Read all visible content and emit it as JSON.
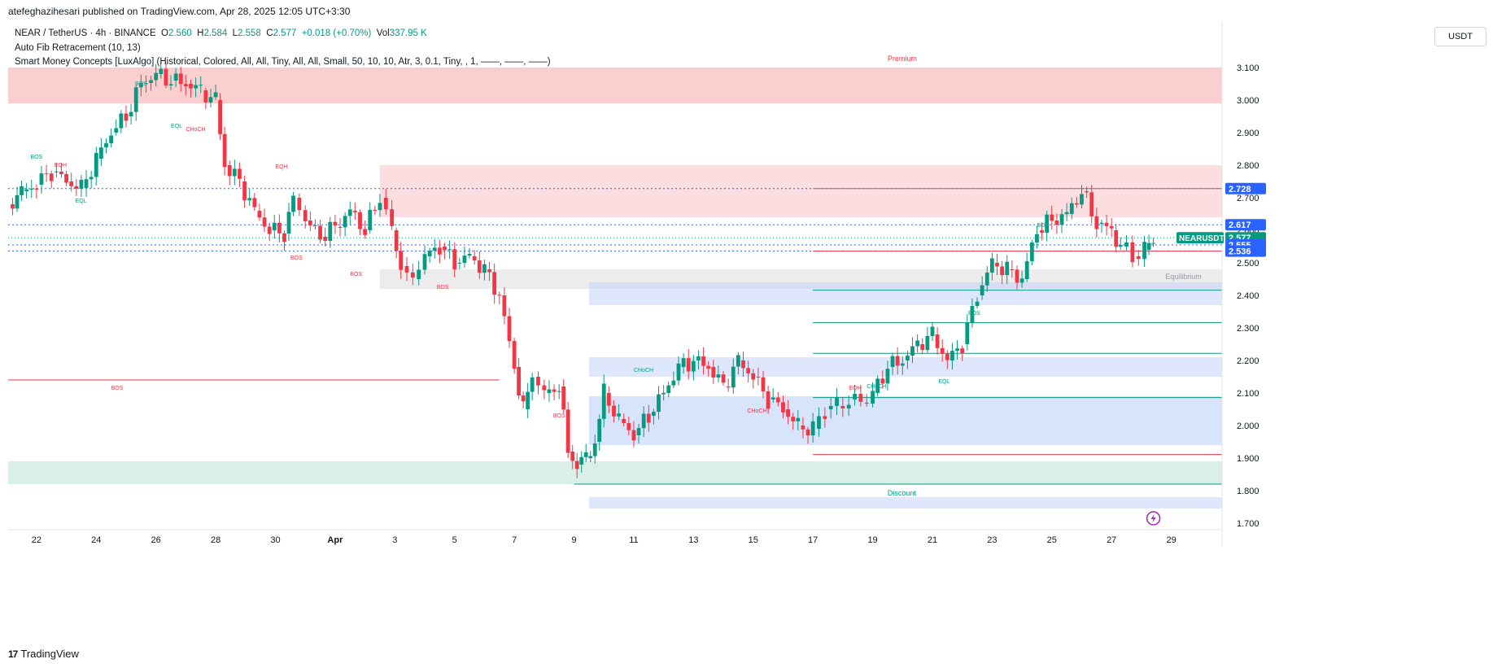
{
  "header": {
    "published": "atefeghazihesari published on TradingView.com, Apr 28, 2025 12:05 UTC+3:30"
  },
  "legend": {
    "symbol": "NEAR / TetherUS · 4h · BINANCE",
    "o_label": "O",
    "o_value": "2.560",
    "h_label": "H",
    "h_value": "2.584",
    "l_label": "L",
    "l_value": "2.558",
    "c_label": "C",
    "c_value": "2.577",
    "change": "+0.018 (+0.70%)",
    "vol_label": "Vol",
    "vol_value": "337.95 K",
    "indicator_1": "Auto Fib Retracement (10, 13)",
    "indicator_2": "Smart Money Concepts [LuxAlgo] (Historical, Colored, All, All, Tiny, All, All, Small, 50, 10, 10, Atr, 3, 0.1, Tiny, , 1, ——, ——, ——)"
  },
  "currency_button": "USDT",
  "footer": {
    "brand": "TradingView",
    "logo": "17"
  },
  "colors": {
    "up": "#089981",
    "down": "#f23645",
    "accent": "#2962ff"
  },
  "chart_data": {
    "type": "candlestick",
    "symbol": "NEARUSDT",
    "ylim": [
      1.69,
      3.24
    ],
    "y_ticks": [
      "3.100",
      "3.000",
      "2.900",
      "2.800",
      "2.700",
      "2.600",
      "2.500",
      "2.400",
      "2.300",
      "2.200",
      "2.100",
      "2.000",
      "1.900",
      "1.800",
      "1.700"
    ],
    "x_ticks": [
      "22",
      "24",
      "26",
      "28",
      "30",
      "Apr",
      "3",
      "5",
      "7",
      "9",
      "11",
      "13",
      "15",
      "17",
      "19",
      "21",
      "23",
      "25",
      "27",
      "29"
    ],
    "x_tick_pos": [
      22,
      24,
      26,
      28,
      30,
      32,
      34,
      36,
      38,
      40,
      42,
      44,
      46,
      48,
      50,
      52,
      54,
      56,
      58,
      60
    ],
    "xlim": [
      21.05,
      61.7
    ],
    "close_series": [
      [
        21.05,
        2.68
      ],
      [
        21.5,
        2.72
      ],
      [
        22,
        2.74
      ],
      [
        22.5,
        2.78
      ],
      [
        23,
        2.75
      ],
      [
        23.5,
        2.73
      ],
      [
        24,
        2.82
      ],
      [
        24.5,
        2.9
      ],
      [
        25,
        2.95
      ],
      [
        25.5,
        3.05
      ],
      [
        26,
        3.08
      ],
      [
        26.5,
        3.06
      ],
      [
        27,
        3.05
      ],
      [
        27.5,
        3.03
      ],
      [
        28,
        3.0
      ],
      [
        28.3,
        2.8
      ],
      [
        28.8,
        2.75
      ],
      [
        29.3,
        2.66
      ],
      [
        29.8,
        2.6
      ],
      [
        30.3,
        2.59
      ],
      [
        30.6,
        2.7
      ],
      [
        31,
        2.63
      ],
      [
        31.5,
        2.58
      ],
      [
        32,
        2.61
      ],
      [
        32.5,
        2.66
      ],
      [
        33,
        2.6
      ],
      [
        33.5,
        2.7
      ],
      [
        33.9,
        2.6
      ],
      [
        34.2,
        2.49
      ],
      [
        34.6,
        2.45
      ],
      [
        35,
        2.52
      ],
      [
        35.5,
        2.55
      ],
      [
        36,
        2.5
      ],
      [
        36.5,
        2.52
      ],
      [
        37,
        2.48
      ],
      [
        37.5,
        2.4
      ],
      [
        38,
        2.18
      ],
      [
        38.3,
        2.05
      ],
      [
        38.6,
        2.15
      ],
      [
        39,
        2.1
      ],
      [
        39.5,
        2.12
      ],
      [
        39.8,
        1.92
      ],
      [
        40.1,
        1.88
      ],
      [
        40.4,
        1.9
      ],
      [
        40.7,
        1.95
      ],
      [
        41,
        2.1
      ],
      [
        41.5,
        2.02
      ],
      [
        42,
        1.97
      ],
      [
        42.5,
        2.03
      ],
      [
        43,
        2.1
      ],
      [
        43.5,
        2.18
      ],
      [
        44,
        2.2
      ],
      [
        44.5,
        2.18
      ],
      [
        45,
        2.12
      ],
      [
        45.5,
        2.2
      ],
      [
        46,
        2.15
      ],
      [
        46.5,
        2.08
      ],
      [
        47,
        2.05
      ],
      [
        47.5,
        2.0
      ],
      [
        48,
        1.99
      ],
      [
        48.4,
        2.05
      ],
      [
        48.8,
        2.06
      ],
      [
        49.2,
        2.08
      ],
      [
        49.6,
        2.07
      ],
      [
        50,
        2.1
      ],
      [
        50.5,
        2.18
      ],
      [
        51,
        2.2
      ],
      [
        51.5,
        2.25
      ],
      [
        52,
        2.28
      ],
      [
        52.5,
        2.2
      ],
      [
        53,
        2.25
      ],
      [
        53.5,
        2.4
      ],
      [
        54,
        2.5
      ],
      [
        54.5,
        2.48
      ],
      [
        55,
        2.45
      ],
      [
        55.5,
        2.6
      ],
      [
        56,
        2.63
      ],
      [
        56.5,
        2.65
      ],
      [
        57,
        2.72
      ],
      [
        57.5,
        2.62
      ],
      [
        58,
        2.6
      ],
      [
        58.3,
        2.55
      ],
      [
        58.7,
        2.52
      ],
      [
        59.1,
        2.54
      ],
      [
        59.4,
        2.58
      ]
    ],
    "price_labels": [
      {
        "value": "2.728",
        "color": "#2962ff"
      },
      {
        "value": "2.617",
        "color": "#2962ff"
      },
      {
        "value": "2.577",
        "color": "#089981",
        "tag": "NEARUSDT",
        "countdown": "03:24:40"
      },
      {
        "value": "2.555",
        "color": "#2962ff"
      },
      {
        "value": "2.536",
        "color": "#2962ff"
      }
    ],
    "zones": [
      {
        "label": "Premium",
        "y0": 2.99,
        "y1": 3.1,
        "color": "#f7a8a8"
      },
      {
        "label": "",
        "y0": 2.64,
        "y1": 2.8,
        "color": "#f9c3c6"
      },
      {
        "label": "Equilibrium",
        "y0": 2.42,
        "y1": 2.48,
        "color": "#dcdcdc"
      },
      {
        "label": "Discount",
        "y0": 1.82,
        "y1": 1.89,
        "color": "#b9e2d6"
      },
      {
        "label": "",
        "y0": 1.94,
        "y1": 2.09,
        "color": "#b8cdf7"
      },
      {
        "label": "",
        "y0": 2.37,
        "y1": 2.44,
        "color": "#c3d4f8"
      },
      {
        "label": "",
        "y0": 2.15,
        "y1": 2.21,
        "color": "#c3d4f8"
      },
      {
        "label": "",
        "y0": 1.745,
        "y1": 1.78,
        "color": "#c3d4f8"
      }
    ],
    "annotations": [
      {
        "text": "BOS",
        "x": 25.3,
        "y": 3.045,
        "color": "#089981"
      },
      {
        "text": "EQL",
        "x": 26.5,
        "y": 2.915,
        "color": "#089981"
      },
      {
        "text": "CHoCH",
        "x": 27.0,
        "y": 2.905,
        "color": "#f23645"
      },
      {
        "text": "BOS",
        "x": 21.8,
        "y": 2.82,
        "color": "#089981"
      },
      {
        "text": "EQH",
        "x": 22.6,
        "y": 2.795,
        "color": "#f23645"
      },
      {
        "text": "EQL",
        "x": 23.3,
        "y": 2.685,
        "color": "#089981"
      },
      {
        "text": "EQH",
        "x": 30.0,
        "y": 2.79,
        "color": "#f23645"
      },
      {
        "text": "BOS",
        "x": 30.5,
        "y": 2.51,
        "color": "#f23645"
      },
      {
        "text": "BOS",
        "x": 32.5,
        "y": 2.46,
        "color": "#f23645"
      },
      {
        "text": "BOS",
        "x": 35.4,
        "y": 2.42,
        "color": "#f23645"
      },
      {
        "text": "BOS",
        "x": 24.5,
        "y": 2.11,
        "color": "#f23645"
      },
      {
        "text": "BOS",
        "x": 39.3,
        "y": 2.025,
        "color": "#f23645"
      },
      {
        "text": "CHoCH",
        "x": 42.0,
        "y": 2.165,
        "color": "#089981"
      },
      {
        "text": "CHoCH",
        "x": 45.8,
        "y": 2.04,
        "color": "#f23645"
      },
      {
        "text": "EQH",
        "x": 49.2,
        "y": 2.11,
        "color": "#f23645"
      },
      {
        "text": "CHoCH",
        "x": 49.8,
        "y": 2.115,
        "color": "#089981"
      },
      {
        "text": "EQL",
        "x": 52.2,
        "y": 2.13,
        "color": "#089981"
      },
      {
        "text": "BOS",
        "x": 53.2,
        "y": 2.34,
        "color": "#089981"
      },
      {
        "text": "BOS",
        "x": 55.5,
        "y": 2.61,
        "color": "#089981"
      }
    ],
    "h_lines": [
      {
        "y": 2.728,
        "color": "#2962ff",
        "dash": "2,3",
        "x0": 21.05
      },
      {
        "y": 2.617,
        "color": "#2962ff",
        "dash": "2,3",
        "x0": 21.05
      },
      {
        "y": 2.577,
        "color": "#089981",
        "dash": "1,3",
        "x0": 21.05
      },
      {
        "y": 2.555,
        "color": "#2962ff",
        "dash": "2,3",
        "x0": 21.05
      },
      {
        "y": 2.536,
        "color": "#2962ff",
        "dash": "2,3",
        "x0": 21.05
      },
      {
        "y": 2.14,
        "color": "#f23645",
        "dash": "",
        "x0": 21.05,
        "x1": 37.5
      },
      {
        "y": 2.536,
        "color": "#f23645",
        "dash": "",
        "x0": 48.0
      },
      {
        "y": 2.728,
        "color": "#787b86",
        "dash": "",
        "x0": 48.0
      },
      {
        "y": 2.416,
        "color": "#089981",
        "dash": "",
        "x0": 48.0
      },
      {
        "y": 2.316,
        "color": "#089981",
        "dash": "",
        "x0": 48.0
      },
      {
        "y": 2.222,
        "color": "#089981",
        "dash": "",
        "x0": 48.0
      },
      {
        "y": 2.086,
        "color": "#089981",
        "dash": "",
        "x0": 48.0
      },
      {
        "y": 1.911,
        "color": "#f23645",
        "dash": "",
        "x0": 48.0
      },
      {
        "y": 1.82,
        "color": "#089981",
        "dash": "",
        "x0": 40.0
      }
    ]
  }
}
